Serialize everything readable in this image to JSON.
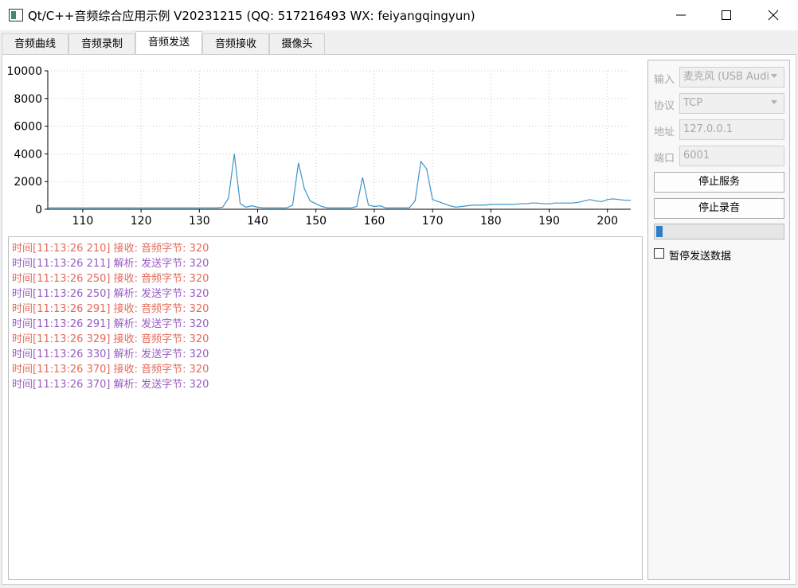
{
  "window": {
    "title": "Qt/C++音频综合应用示例 V20231215 (QQ: 517216493 WX: feiyangqingyun)"
  },
  "tabs": [
    "音频曲线",
    "音频录制",
    "音频发送",
    "音频接收",
    "摄像头"
  ],
  "active_tab": 2,
  "chart_data": {
    "type": "line",
    "x": [
      104,
      105,
      106,
      107,
      108,
      109,
      110,
      111,
      112,
      113,
      114,
      115,
      116,
      117,
      118,
      119,
      120,
      121,
      122,
      123,
      124,
      125,
      126,
      127,
      128,
      129,
      130,
      131,
      132,
      133,
      134,
      135,
      136,
      137,
      138,
      139,
      140,
      141,
      142,
      143,
      144,
      145,
      146,
      147,
      148,
      149,
      150,
      151,
      152,
      153,
      154,
      155,
      156,
      157,
      158,
      159,
      160,
      161,
      162,
      163,
      164,
      165,
      166,
      167,
      168,
      169,
      170,
      171,
      172,
      173,
      174,
      175,
      176,
      177,
      178,
      179,
      180,
      181,
      182,
      183,
      184,
      185,
      186,
      187,
      188,
      189,
      190,
      191,
      192,
      193,
      194,
      195,
      196,
      197,
      198,
      199,
      200,
      201,
      202,
      203,
      204
    ],
    "series": [
      {
        "color": "#3d94c8",
        "values": [
          100,
          100,
          100,
          100,
          100,
          100,
          100,
          100,
          100,
          100,
          100,
          100,
          100,
          100,
          100,
          100,
          100,
          100,
          100,
          100,
          100,
          100,
          100,
          100,
          100,
          100,
          100,
          100,
          100,
          100,
          150,
          800,
          4000,
          400,
          150,
          250,
          150,
          100,
          100,
          100,
          100,
          100,
          300,
          3350,
          1500,
          600,
          400,
          200,
          100,
          100,
          100,
          100,
          100,
          200,
          2300,
          300,
          200,
          250,
          100,
          100,
          100,
          100,
          100,
          600,
          3450,
          2900,
          700,
          550,
          400,
          250,
          150,
          200,
          250,
          300,
          300,
          300,
          350,
          350,
          350,
          350,
          350,
          400,
          400,
          450,
          450,
          400,
          400,
          450,
          450,
          450,
          450,
          500,
          600,
          700,
          600,
          550,
          700,
          750,
          700,
          650,
          650
        ]
      }
    ],
    "xlim": [
      104,
      204
    ],
    "ylim": [
      0,
      10000
    ],
    "xticks": [
      110,
      120,
      130,
      140,
      150,
      160,
      170,
      180,
      190,
      200
    ],
    "yticks": [
      0,
      2000,
      4000,
      6000,
      8000,
      10000
    ],
    "grid": true
  },
  "log": [
    "时间[11:13:26 210] 接收: 音频字节: 320",
    "时间[11:13:26 211] 解析: 发送字节: 320",
    "时间[11:13:26 250] 接收: 音频字节: 320",
    "时间[11:13:26 250] 解析: 发送字节: 320",
    "时间[11:13:26 291] 接收: 音频字节: 320",
    "时间[11:13:26 291] 解析: 发送字节: 320",
    "时间[11:13:26 329] 接收: 音频字节: 320",
    "时间[11:13:26 330] 解析: 发送字节: 320",
    "时间[11:13:26 370] 接收: 音频字节: 320",
    "时间[11:13:26 370] 解析: 发送字节: 320"
  ],
  "panel": {
    "fields": [
      {
        "label": "输入",
        "value": "麦克风 (USB Audi"
      },
      {
        "label": "协议",
        "value": "TCP"
      },
      {
        "label": "地址",
        "value": "127.0.0.1"
      },
      {
        "label": "端口",
        "value": "6001"
      }
    ],
    "buttons": [
      "停止服务",
      "停止录音"
    ],
    "checkbox": "暂停发送数据"
  }
}
